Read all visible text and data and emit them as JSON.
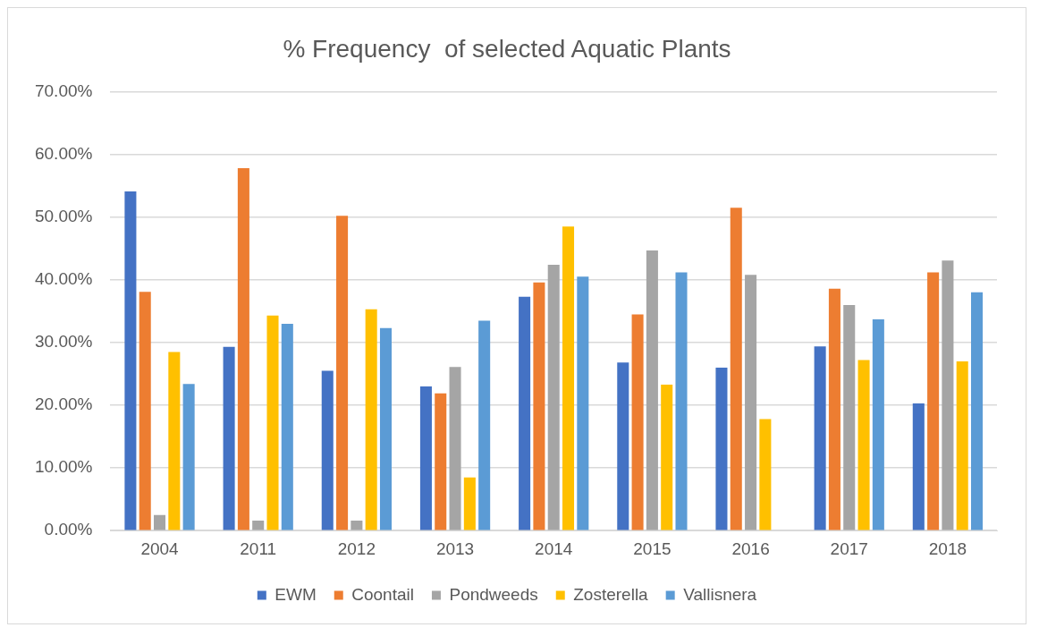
{
  "chart_data": {
    "type": "bar",
    "title": "% Frequency  of selected Aquatic Plants",
    "categories": [
      "2004",
      "2011",
      "2012",
      "2013",
      "2014",
      "2015",
      "2016",
      "2017",
      "2018"
    ],
    "series": [
      {
        "name": "EWM",
        "color": "#4472c4",
        "values": [
          54.1,
          29.3,
          25.5,
          23.0,
          37.3,
          26.8,
          26.0,
          29.4,
          20.3
        ]
      },
      {
        "name": "Coontail",
        "color": "#ed7d31",
        "values": [
          38.1,
          57.8,
          50.2,
          21.9,
          39.6,
          34.5,
          51.5,
          38.6,
          41.2
        ]
      },
      {
        "name": "Pondweeds",
        "color": "#a5a5a5",
        "values": [
          2.5,
          1.6,
          1.6,
          26.1,
          42.4,
          44.7,
          40.8,
          36.0,
          43.1
        ]
      },
      {
        "name": "Zosterella",
        "color": "#ffc000",
        "values": [
          28.5,
          34.3,
          35.3,
          8.5,
          48.5,
          23.3,
          17.8,
          27.2,
          27.0
        ]
      },
      {
        "name": "Vallisnera",
        "color": "#5b9bd5",
        "values": [
          23.4,
          33.0,
          32.3,
          33.5,
          40.5,
          41.2,
          null,
          33.7,
          38.0
        ]
      }
    ],
    "ylim": [
      0,
      70
    ],
    "yticks": [
      {
        "value": 0,
        "label": "0.00%"
      },
      {
        "value": 10,
        "label": "10.00%"
      },
      {
        "value": 20,
        "label": "20.00%"
      },
      {
        "value": 30,
        "label": "30.00%"
      },
      {
        "value": 40,
        "label": "40.00%"
      },
      {
        "value": 50,
        "label": "50.00%"
      },
      {
        "value": 60,
        "label": "60.00%"
      },
      {
        "value": 70,
        "label": "70.00%"
      }
    ],
    "grid": "y",
    "legend": "bottom"
  }
}
